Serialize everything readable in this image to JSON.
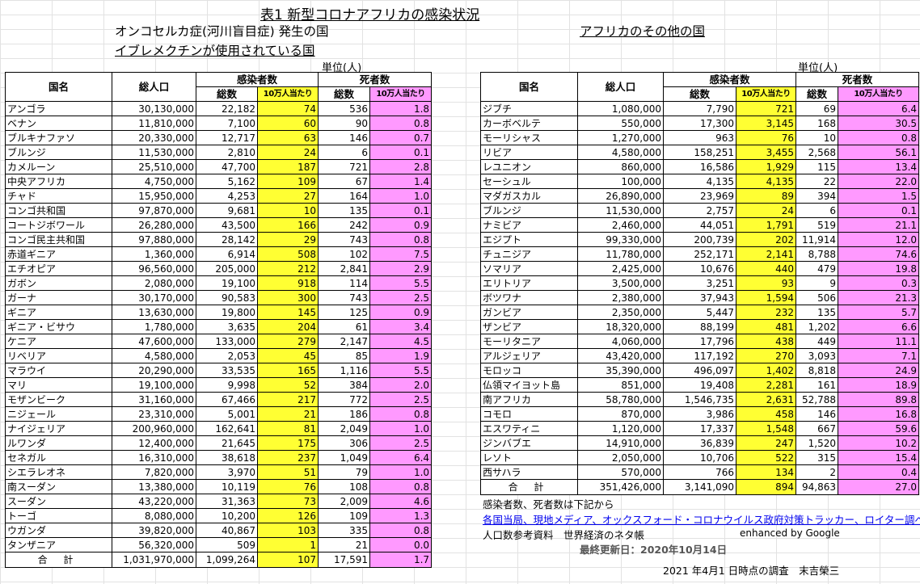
{
  "title": "表1 新型コロナアフリカの感染状況",
  "left_heading": "オンコセルカ症(河川盲目症) 発生の国",
  "left_heading2": "イブレメクチンが使用されている国",
  "right_heading": "アフリカのその他の国",
  "unit_label": "単位(人)",
  "headers": {
    "country": "国名",
    "population": "総人口",
    "infected": "感染者数",
    "deaths": "死者数",
    "total": "総数",
    "per100k": "10万人当たり"
  },
  "left_rows": [
    [
      "アンゴラ",
      "30,130,000",
      "22,182",
      "74",
      "536",
      "1.8"
    ],
    [
      "ベナン",
      "11,810,000",
      "7,100",
      "60",
      "90",
      "0.8"
    ],
    [
      "ブルキナファソ",
      "20,330,000",
      "12,717",
      "63",
      "146",
      "0.7"
    ],
    [
      "ブルンジ",
      "11,530,000",
      "2,810",
      "24",
      "6",
      "0.1"
    ],
    [
      "カメルーン",
      "25,510,000",
      "47,700",
      "187",
      "721",
      "2.8"
    ],
    [
      "中央アフリカ",
      "4,750,000",
      "5,162",
      "109",
      "67",
      "1.4"
    ],
    [
      "チャド",
      "15,950,000",
      "4,253",
      "27",
      "164",
      "1.0"
    ],
    [
      "コンゴ共和国",
      "97,870,000",
      "9,681",
      "10",
      "135",
      "0.1"
    ],
    [
      "コートジボワール",
      "26,280,000",
      "43,500",
      "166",
      "242",
      "0.9"
    ],
    [
      "コンゴ民主共和国",
      "97,880,000",
      "28,142",
      "29",
      "743",
      "0.8"
    ],
    [
      "赤道ギニア",
      "1,360,000",
      "6,914",
      "508",
      "102",
      "7.5"
    ],
    [
      "エチオピア",
      "96,560,000",
      "205,000",
      "212",
      "2,841",
      "2.9"
    ],
    [
      "ガボン",
      "2,080,000",
      "19,100",
      "918",
      "114",
      "5.5"
    ],
    [
      "ガーナ",
      "30,170,000",
      "90,583",
      "300",
      "743",
      "2.5"
    ],
    [
      "ギニア",
      "13,630,000",
      "19,800",
      "145",
      "125",
      "0.9"
    ],
    [
      "ギニア・ビサウ",
      "1,780,000",
      "3,635",
      "204",
      "61",
      "3.4"
    ],
    [
      "ケニア",
      "47,600,000",
      "133,000",
      "279",
      "2,147",
      "4.5"
    ],
    [
      "リベリア",
      "4,580,000",
      "2,053",
      "45",
      "85",
      "1.9"
    ],
    [
      "マラウイ",
      "20,290,000",
      "33,535",
      "165",
      "1,116",
      "5.5"
    ],
    [
      "マリ",
      "19,100,000",
      "9,998",
      "52",
      "384",
      "2.0"
    ],
    [
      "モザンビーク",
      "31,160,000",
      "67,466",
      "217",
      "772",
      "2.5"
    ],
    [
      "ニジェール",
      "23,310,000",
      "5,001",
      "21",
      "186",
      "0.8"
    ],
    [
      "ナイジェリア",
      "200,960,000",
      "162,641",
      "81",
      "2,049",
      "1.0"
    ],
    [
      "ルワンダ",
      "12,400,000",
      "21,645",
      "175",
      "306",
      "2.5"
    ],
    [
      "セネガル",
      "16,310,000",
      "38,618",
      "237",
      "1,049",
      "6.4"
    ],
    [
      "シエラレオネ",
      "7,820,000",
      "3,970",
      "51",
      "79",
      "1.0"
    ],
    [
      "南スーダン",
      "13,380,000",
      "10,119",
      "76",
      "108",
      "0.8"
    ],
    [
      "スーダン",
      "43,220,000",
      "31,363",
      "73",
      "2,009",
      "4.6"
    ],
    [
      "トーゴ",
      "8,080,000",
      "10,200",
      "126",
      "109",
      "1.3"
    ],
    [
      "ウガンダ",
      "39,820,000",
      "40,867",
      "103",
      "335",
      "0.8"
    ],
    [
      "タンザニア",
      "56,320,000",
      "509",
      "1",
      "21",
      "0.0"
    ]
  ],
  "left_total": [
    "合 計",
    "1,031,970,000",
    "1,099,264",
    "107",
    "17,591",
    "1.7"
  ],
  "right_rows": [
    [
      "ジブチ",
      "1,080,000",
      "7,790",
      "721",
      "69",
      "6.4"
    ],
    [
      "カーボベルテ",
      "550,000",
      "17,300",
      "3,145",
      "168",
      "30.5"
    ],
    [
      "モーリシャス",
      "1,270,000",
      "963",
      "76",
      "10",
      "0.8"
    ],
    [
      "リビア",
      "4,580,000",
      "158,251",
      "3,455",
      "2,568",
      "56.1"
    ],
    [
      "レユニオン",
      "860,000",
      "16,586",
      "1,929",
      "115",
      "13.4"
    ],
    [
      "セーシュル",
      "100,000",
      "4,135",
      "4,135",
      "22",
      "22.0"
    ],
    [
      "マダガスカル",
      "26,890,000",
      "23,969",
      "89",
      "394",
      "1.5"
    ],
    [
      "ブルンジ",
      "11,530,000",
      "2,757",
      "24",
      "6",
      "0.1"
    ],
    [
      "ナミビア",
      "2,460,000",
      "44,051",
      "1,791",
      "519",
      "21.1"
    ],
    [
      "エジプト",
      "99,330,000",
      "200,739",
      "202",
      "11,914",
      "12.0"
    ],
    [
      "チュニジア",
      "11,780,000",
      "252,171",
      "2,141",
      "8,788",
      "74.6"
    ],
    [
      "ソマリア",
      "2,425,000",
      "10,676",
      "440",
      "479",
      "19.8"
    ],
    [
      "エリトリア",
      "3,500,000",
      "3,251",
      "93",
      "9",
      "0.3"
    ],
    [
      "ボツワナ",
      "2,380,000",
      "37,943",
      "1,594",
      "506",
      "21.3"
    ],
    [
      "ガンビア",
      "2,350,000",
      "5,447",
      "232",
      "135",
      "5.7"
    ],
    [
      "ザンビア",
      "18,320,000",
      "88,199",
      "481",
      "1,202",
      "6.6"
    ],
    [
      "モーリタニア",
      "4,060,000",
      "17,796",
      "438",
      "449",
      "11.1"
    ],
    [
      "アルジェリア",
      "43,420,000",
      "117,192",
      "270",
      "3,093",
      "7.1"
    ],
    [
      "モロッコ",
      "35,390,000",
      "496,097",
      "1,402",
      "8,818",
      "24.9"
    ],
    [
      "仏領マイヨット島",
      "851,000",
      "19,408",
      "2,281",
      "161",
      "18.9"
    ],
    [
      "南アフリカ",
      "58,780,000",
      "1,546,735",
      "2,631",
      "52,788",
      "89.8"
    ],
    [
      "コモロ",
      "870,000",
      "3,986",
      "458",
      "146",
      "16.8"
    ],
    [
      "エスワティニ",
      "1,120,000",
      "17,337",
      "1,548",
      "667",
      "59.6"
    ],
    [
      "ジンバブエ",
      "14,910,000",
      "36,839",
      "247",
      "1,520",
      "10.2"
    ],
    [
      "レソト",
      "2,050,000",
      "10,706",
      "522",
      "315",
      "15.4"
    ],
    [
      "西サハラ",
      "570,000",
      "766",
      "134",
      "2",
      "0.4"
    ]
  ],
  "right_total": [
    "合 計",
    "351,426,000",
    "3,141,090",
    "894",
    "94,863",
    "27.0"
  ],
  "notes": {
    "source_intro": "感染者数、死者数は下記から",
    "source_link": "各国当局、現地メディア、オックスフォード・コロナウイルス政府対策トラッカー、ロイター調べ",
    "population_ref": "人口数参考資料　世界経済のネタ帳",
    "enhanced": "enhanced  by Google",
    "last_updated": "最終更新日：2020年10月14日",
    "survey_date": "2021 年4月1 日時点の調査　末吉榮三"
  },
  "colors": {
    "per100k_infected": "#ffff33",
    "per100k_deaths": "#ff99ff",
    "link": "#0000ee"
  }
}
